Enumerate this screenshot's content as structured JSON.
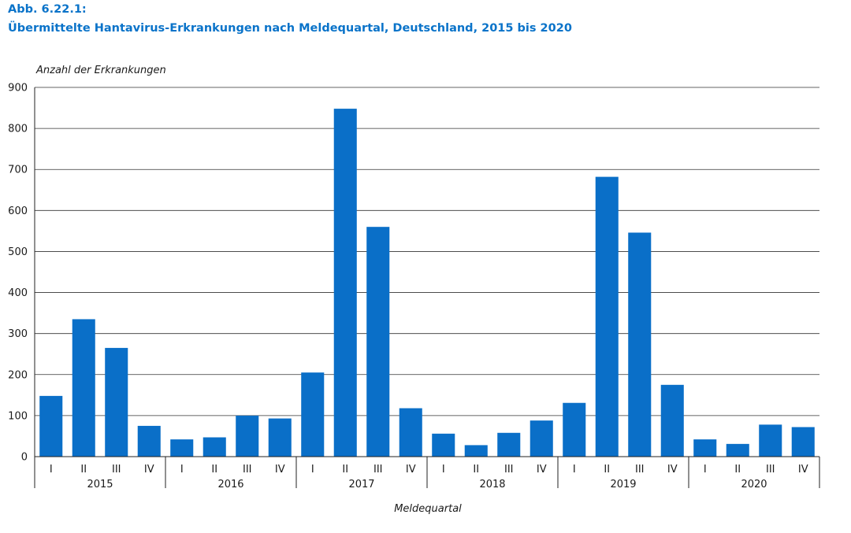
{
  "figure": {
    "label": "Abb. 6.22.1:",
    "title": "Übermittelte Hantavirus-Erkrankungen nach Meldequartal, Deutschland, 2015 bis 2020"
  },
  "colors": {
    "bar": "#0a6fc8",
    "title": "#0a73c9",
    "grid": "#333333",
    "axis": "#222222"
  },
  "chart_data": {
    "type": "bar",
    "title": "Übermittelte Hantavirus-Erkrankungen nach Meldequartal, Deutschland, 2015 bis 2020",
    "xlabel": "Meldequartal",
    "ylabel": "Anzahl der Erkrankungen",
    "ylim": [
      0,
      900
    ],
    "yticks": [
      0,
      100,
      200,
      300,
      400,
      500,
      600,
      700,
      800,
      900
    ],
    "grid": true,
    "groups": [
      {
        "year": "2015",
        "quarters": [
          "I",
          "II",
          "III",
          "IV"
        ],
        "values": [
          148,
          335,
          265,
          75
        ]
      },
      {
        "year": "2016",
        "quarters": [
          "I",
          "II",
          "III",
          "IV"
        ],
        "values": [
          42,
          47,
          100,
          93
        ]
      },
      {
        "year": "2017",
        "quarters": [
          "I",
          "II",
          "III",
          "IV"
        ],
        "values": [
          205,
          848,
          560,
          118
        ]
      },
      {
        "year": "2018",
        "quarters": [
          "I",
          "II",
          "III",
          "IV"
        ],
        "values": [
          56,
          28,
          58,
          88
        ]
      },
      {
        "year": "2019",
        "quarters": [
          "I",
          "II",
          "III",
          "IV"
        ],
        "values": [
          131,
          682,
          546,
          175
        ]
      },
      {
        "year": "2020",
        "quarters": [
          "I",
          "II",
          "III",
          "IV"
        ],
        "values": [
          42,
          31,
          78,
          72
        ]
      }
    ]
  }
}
